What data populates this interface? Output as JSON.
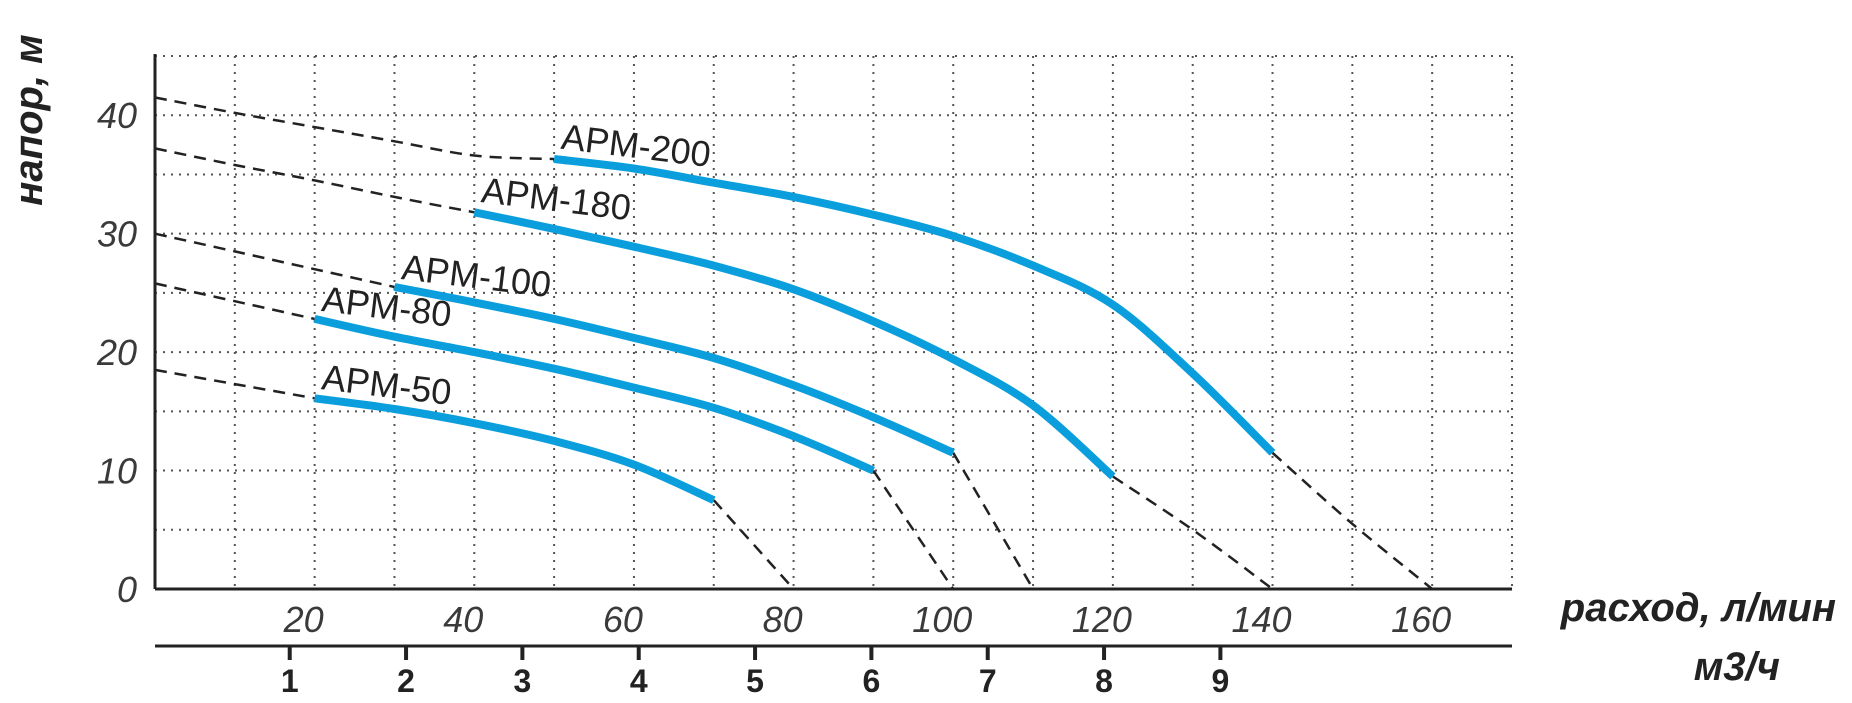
{
  "colors": {
    "curve": "#0a9fdc",
    "dash": "#222222",
    "grid": "#555555",
    "axis": "#222222"
  },
  "chart_data": {
    "type": "line",
    "title": "",
    "ylabel": "напор, м",
    "xlabel": "расход, л/мин",
    "xlabel2": "м3/ч",
    "xlim": [
      0,
      170
    ],
    "ylim": [
      0,
      45
    ],
    "x_ticks": [
      20,
      40,
      60,
      80,
      100,
      120,
      140,
      160
    ],
    "y_ticks": [
      0,
      10,
      20,
      30,
      40
    ],
    "x2_ticks": [
      "1",
      "2",
      "3",
      "4",
      "5",
      "6",
      "7",
      "8",
      "9"
    ],
    "x2_tick_values": [
      1,
      2,
      3,
      4,
      5,
      6,
      7,
      8,
      9
    ],
    "x2_max": 10.2,
    "grid": true,
    "series": [
      {
        "name": "APM-200",
        "label_anchor": [
          50,
          36.5
        ],
        "x": [
          0,
          10,
          20,
          30,
          40,
          50,
          60,
          70,
          80,
          90,
          100,
          110,
          120,
          130,
          140,
          150,
          160
        ],
        "y": [
          41.5,
          40.2,
          39.0,
          37.8,
          36.6,
          36.3,
          35.5,
          34.3,
          33.1,
          31.6,
          29.8,
          27.3,
          24.0,
          18.2,
          11.5,
          5.5,
          0
        ],
        "solid_range": [
          50,
          140
        ]
      },
      {
        "name": "APM-180",
        "label_anchor": [
          40,
          32.0
        ],
        "x": [
          0,
          10,
          20,
          30,
          40,
          50,
          60,
          70,
          80,
          90,
          100,
          110,
          120,
          130,
          140
        ],
        "y": [
          37.2,
          35.8,
          34.5,
          33.1,
          31.8,
          30.4,
          28.9,
          27.3,
          25.3,
          22.6,
          19.4,
          15.5,
          9.5,
          5.0,
          0
        ],
        "solid_range": [
          40,
          120
        ]
      },
      {
        "name": "APM-100",
        "label_anchor": [
          30,
          25.5
        ],
        "x": [
          0,
          10,
          20,
          30,
          40,
          50,
          60,
          70,
          80,
          90,
          100,
          110
        ],
        "y": [
          30.0,
          28.5,
          27.0,
          25.5,
          24.2,
          22.8,
          21.2,
          19.5,
          17.2,
          14.5,
          11.5,
          0
        ],
        "solid_range": [
          30,
          100
        ]
      },
      {
        "name": "APM-80",
        "label_anchor": [
          20,
          22.8
        ],
        "x": [
          0,
          10,
          20,
          30,
          40,
          50,
          60,
          70,
          80,
          90,
          100
        ],
        "y": [
          25.8,
          24.3,
          22.8,
          21.3,
          20.0,
          18.6,
          17.0,
          15.3,
          12.9,
          10.0,
          0
        ],
        "solid_range": [
          20,
          90
        ]
      },
      {
        "name": "APM-50",
        "label_anchor": [
          20,
          16.2
        ],
        "x": [
          0,
          10,
          20,
          30,
          40,
          50,
          60,
          70,
          80
        ],
        "y": [
          18.5,
          17.3,
          16.1,
          15.2,
          14.0,
          12.5,
          10.5,
          7.5,
          0
        ],
        "solid_range": [
          20,
          70
        ]
      }
    ]
  }
}
